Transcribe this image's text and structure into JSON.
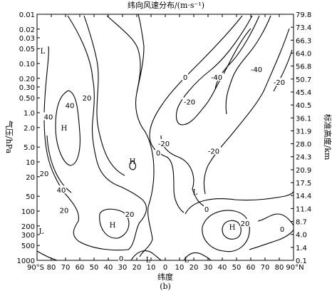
{
  "chart_data": {
    "type": "contour",
    "title": "纬向风速分布/(m·s⁻¹)",
    "xlabel": "纬度",
    "ylabel_left": "气压/hPa",
    "ylabel_right": "标准高度/km",
    "caption": "(b)",
    "x_ticks": [
      "90°S",
      "80",
      "70",
      "60",
      "50",
      "40",
      "30",
      "20",
      "10",
      "0",
      "10",
      "20",
      "30",
      "40",
      "50",
      "60",
      "70",
      "80",
      "90°N"
    ],
    "y_ticks_left": [
      "0.01",
      "0.02",
      "0.03",
      "0.05",
      "0.10",
      "0.20",
      "0.30",
      "0.50",
      "1.0",
      "2.0",
      "5.0",
      "10",
      "20",
      "50",
      "100",
      "200",
      "300",
      "500",
      "1000"
    ],
    "y_ticks_right": [
      "79.8",
      "73.4",
      "66.3",
      "64.0",
      "56.8",
      "50.7",
      "45.4",
      "40.5",
      "36.1",
      "31.9",
      "28.0",
      "24.3",
      "20.9",
      "17.5",
      "14.4",
      "11.4",
      "8.7",
      "4.0",
      "1.4",
      "0.1"
    ],
    "contour_labels": [
      {
        "text": "40",
        "lat": -67,
        "p": 0.7
      },
      {
        "text": "40",
        "lat": -82,
        "p": 1.2
      },
      {
        "text": "20",
        "lat": -55,
        "p": 0.5
      },
      {
        "text": "20",
        "lat": -85,
        "p": 17
      },
      {
        "text": "40",
        "lat": -73,
        "p": 37
      },
      {
        "text": "20",
        "lat": -71,
        "p": 95
      },
      {
        "text": "20",
        "lat": -25,
        "p": 115
      },
      {
        "text": "0",
        "lat": -31,
        "p": 900
      },
      {
        "text": "0",
        "lat": -5,
        "p": 6.5
      },
      {
        "text": "0",
        "lat": 14,
        "p": 0.19
      },
      {
        "text": "-20",
        "lat": 17,
        "p": 0.6
      },
      {
        "text": "-20",
        "lat": -1,
        "p": 4.2
      },
      {
        "text": "-20",
        "lat": 34,
        "p": 6.0
      },
      {
        "text": "-40",
        "lat": 36,
        "p": 0.19
      },
      {
        "text": "-40",
        "lat": 64,
        "p": 0.13
      },
      {
        "text": "-20",
        "lat": 80,
        "p": 0.24
      },
      {
        "text": "0",
        "lat": 29,
        "p": 90
      },
      {
        "text": "20",
        "lat": 56,
        "p": 175
      },
      {
        "text": "0",
        "lat": 82,
        "p": 230
      }
    ],
    "extrema": [
      {
        "text": "H",
        "lat": -71,
        "p": 2.0
      },
      {
        "text": "H",
        "lat": -23,
        "p": 9.5
      },
      {
        "text": "H",
        "lat": -37,
        "p": 190
      },
      {
        "text": "H",
        "lat": 47,
        "p": 210
      },
      {
        "text": "L",
        "lat": -86,
        "p": 0.055
      },
      {
        "text": "L",
        "lat": -87,
        "p": 250
      },
      {
        "text": "L",
        "lat": 21,
        "p": 40
      },
      {
        "text": "L",
        "lat": -12,
        "p": 950
      },
      {
        "text": "L",
        "lat": 15,
        "p": 950
      }
    ]
  }
}
